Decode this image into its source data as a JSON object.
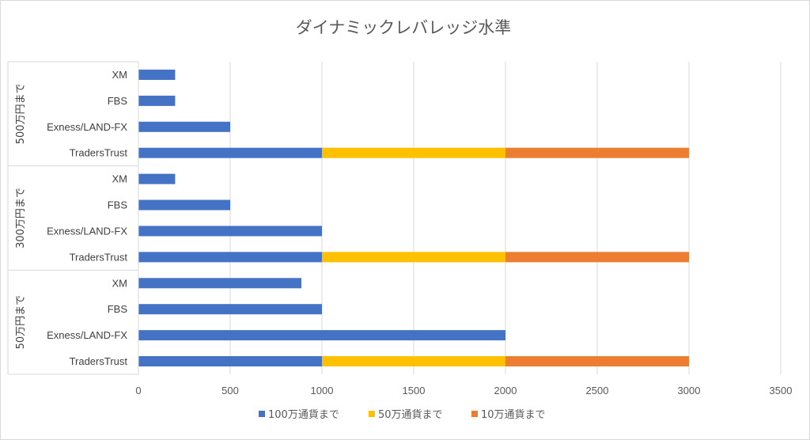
{
  "chart_data": {
    "type": "bar",
    "orientation": "horizontal",
    "stacked": true,
    "title": "ダイナミックレバレッジ水準",
    "xlabel": "",
    "ylabel": "",
    "xlim": [
      0,
      3500
    ],
    "x_ticks": [
      "0",
      "500",
      "1000",
      "1500",
      "2000",
      "2500",
      "3000",
      "3500"
    ],
    "grid": true,
    "legend_position": "bottom",
    "groups": [
      {
        "name": "500万円まで",
        "categories": [
          "XM",
          "FBS",
          "Exness/LAND-FX",
          "TradersTrust"
        ]
      },
      {
        "name": "300万円まで",
        "categories": [
          "XM",
          "FBS",
          "Exness/LAND-FX",
          "TradersTrust"
        ]
      },
      {
        "name": "50万円まで",
        "categories": [
          "XM",
          "FBS",
          "Exness/LAND-FX",
          "TradersTrust"
        ]
      }
    ],
    "series": [
      {
        "name": "100万通貨まで",
        "color": "#4472C4",
        "values": [
          200,
          200,
          500,
          1000,
          200,
          500,
          1000,
          1000,
          888,
          1000,
          2000,
          1000
        ]
      },
      {
        "name": "50万通貨まで",
        "color": "#FFC000",
        "values": [
          0,
          0,
          0,
          1000,
          0,
          0,
          0,
          1000,
          0,
          0,
          0,
          1000
        ]
      },
      {
        "name": "10万通貨まで",
        "color": "#ED7D31",
        "values": [
          0,
          0,
          0,
          1000,
          0,
          0,
          0,
          1000,
          0,
          0,
          0,
          1000
        ]
      }
    ]
  }
}
